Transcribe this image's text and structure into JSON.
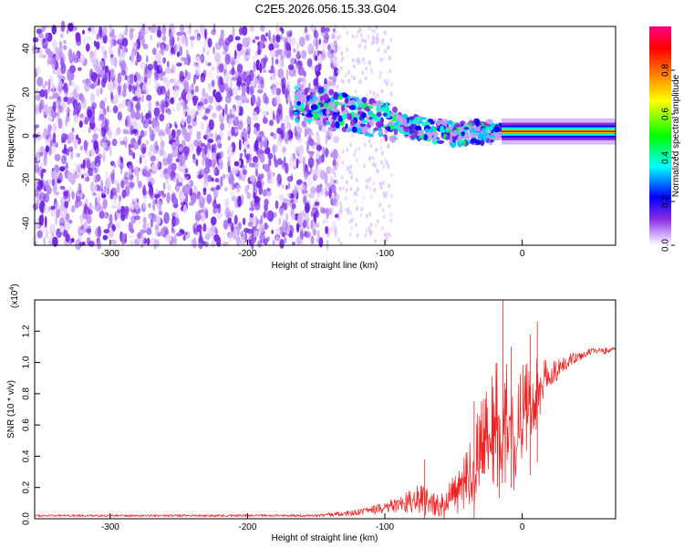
{
  "title": "C2E5.2026.056.15.33.G04",
  "chart_data": [
    {
      "type": "heatmap",
      "name": "spectrogram",
      "xlabel": "Height of straight line (km)",
      "ylabel": "Frequency (Hz)",
      "xlim": [
        -355,
        68
      ],
      "ylim": [
        -50,
        50
      ],
      "xticks": [
        -300,
        -200,
        -100,
        0
      ],
      "xtick_labels": [
        "-300",
        "-200",
        "-100",
        "0"
      ],
      "yticks": [
        -40,
        -20,
        0,
        20,
        40
      ],
      "ytick_labels": [
        "-40",
        "-20",
        "0",
        "20",
        "40"
      ],
      "colorbar": {
        "label": "Normalized spectral amplitude",
        "range": [
          0.0,
          1.0
        ],
        "ticks": [
          0.0,
          0.2,
          0.4,
          0.6,
          0.8
        ],
        "tick_labels": [
          "0.0",
          "0.2",
          "0.4",
          "0.6",
          "0.8"
        ],
        "colors": [
          "#ffffff",
          "#8a2be2",
          "#0000ff",
          "#00ffff",
          "#00ff00",
          "#ffff00",
          "#ff8000",
          "#ff0000",
          "#ff0080"
        ]
      },
      "features": {
        "noise_region_km": [
          -355,
          -135
        ],
        "tone_center_hz": [
          [
            -160,
            15
          ],
          [
            -110,
            8
          ],
          [
            -80,
            4
          ],
          [
            -50,
            1
          ],
          [
            -20,
            2
          ],
          [
            0,
            2
          ],
          [
            68,
            2
          ]
        ]
      }
    },
    {
      "type": "line",
      "name": "snr",
      "xlabel": "Height of straight line (km)",
      "ylabel": "SNR (10 * v/v)",
      "scale_label": "(x10",
      "scale_exponent": "4",
      "scale_suffix": ")",
      "xlim": [
        -355,
        68
      ],
      "ylim": [
        0.0,
        1.4
      ],
      "xticks": [
        -300,
        -200,
        -100,
        0
      ],
      "xtick_labels": [
        "-300",
        "-200",
        "-100",
        "0"
      ],
      "yticks": [
        0.0,
        0.2,
        0.4,
        0.6,
        0.8,
        1.0,
        1.2
      ],
      "ytick_labels": [
        "0.0",
        "0.2",
        "0.4",
        "0.6",
        "0.8",
        "1.0",
        "1.2"
      ],
      "color": "#ee2222",
      "envelope": {
        "x": [
          -355,
          -150,
          -120,
          -90,
          -75,
          -60,
          -45,
          -35,
          -25,
          -15,
          -10,
          -5,
          0,
          10,
          20,
          35,
          50,
          68
        ],
        "mean": [
          0.02,
          0.02,
          0.04,
          0.09,
          0.12,
          0.09,
          0.22,
          0.4,
          0.55,
          0.7,
          0.75,
          0.6,
          0.75,
          0.85,
          0.93,
          1.02,
          1.07,
          1.08
        ],
        "amplitude": [
          0.006,
          0.008,
          0.02,
          0.05,
          0.1,
          0.08,
          0.12,
          0.25,
          0.3,
          0.4,
          0.35,
          0.3,
          0.25,
          0.2,
          0.1,
          0.04,
          0.02,
          0.02
        ]
      }
    }
  ]
}
